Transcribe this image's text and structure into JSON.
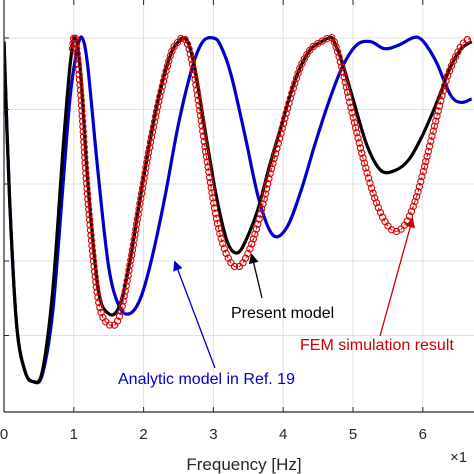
{
  "chart_data": {
    "type": "line",
    "title": "",
    "xlabel": "Frequency [Hz]",
    "ylabel": "",
    "x_exponent_label": "×1",
    "xlim": [
      0,
      6.7
    ],
    "ylim": [
      0,
      1
    ],
    "xticks": [
      0,
      1,
      2,
      3,
      4,
      5,
      6
    ],
    "xtick_labels": [
      "0",
      "1",
      "2",
      "3",
      "4",
      "5",
      "6"
    ],
    "yticks": [
      0,
      0.2,
      0.4,
      0.6,
      0.8,
      1.0
    ],
    "grid": true,
    "series": [
      {
        "name": "Present model",
        "color": "#000000",
        "style": "solid",
        "x": [
          0.0,
          0.08,
          0.18,
          0.3,
          0.42,
          0.55,
          0.7,
          0.85,
          0.95,
          1.02,
          1.1,
          1.2,
          1.35,
          1.5,
          1.65,
          1.8,
          1.95,
          2.1,
          2.25,
          2.4,
          2.5,
          2.57,
          2.65,
          2.75,
          2.9,
          3.05,
          3.2,
          3.35,
          3.5,
          3.65,
          3.8,
          3.95,
          4.1,
          4.25,
          4.4,
          4.55,
          4.65,
          4.7,
          4.75,
          4.85,
          5.0,
          5.2,
          5.4,
          5.6,
          5.8,
          6.0,
          6.2,
          6.4,
          6.55,
          6.7
        ],
        "y": [
          0.99,
          0.55,
          0.2,
          0.07,
          0.04,
          0.07,
          0.3,
          0.7,
          0.93,
          1.0,
          0.9,
          0.6,
          0.3,
          0.23,
          0.25,
          0.37,
          0.55,
          0.72,
          0.86,
          0.96,
          0.99,
          1.0,
          0.98,
          0.9,
          0.72,
          0.55,
          0.43,
          0.4,
          0.45,
          0.53,
          0.64,
          0.74,
          0.84,
          0.92,
          0.97,
          0.99,
          1.0,
          1.0,
          0.98,
          0.93,
          0.83,
          0.7,
          0.63,
          0.63,
          0.66,
          0.73,
          0.82,
          0.92,
          0.97,
          0.99
        ]
      },
      {
        "name": "Analytic model in Ref. 19",
        "color": "#0000c8",
        "style": "solid",
        "x": [
          0.0,
          0.08,
          0.18,
          0.3,
          0.42,
          0.55,
          0.7,
          0.85,
          0.95,
          1.05,
          1.12,
          1.2,
          1.35,
          1.5,
          1.65,
          1.8,
          1.95,
          2.1,
          2.3,
          2.5,
          2.7,
          2.85,
          3.0,
          3.1,
          3.25,
          3.45,
          3.65,
          3.85,
          4.05,
          4.25,
          4.45,
          4.65,
          4.85,
          5.05,
          5.25,
          5.45,
          5.65,
          5.85,
          5.95,
          6.05,
          6.2,
          6.4,
          6.55,
          6.7
        ],
        "y": [
          0.99,
          0.55,
          0.2,
          0.07,
          0.04,
          0.06,
          0.24,
          0.6,
          0.84,
          0.97,
          1.0,
          0.92,
          0.62,
          0.36,
          0.25,
          0.23,
          0.27,
          0.37,
          0.55,
          0.76,
          0.92,
          0.99,
          1.0,
          0.98,
          0.9,
          0.73,
          0.55,
          0.45,
          0.47,
          0.57,
          0.7,
          0.82,
          0.92,
          0.98,
          0.99,
          0.97,
          0.98,
          1.0,
          1.0,
          0.98,
          0.93,
          0.84,
          0.82,
          0.83
        ]
      },
      {
        "name": "FEM simulation result",
        "color": "#dd0000",
        "style": "marker",
        "x": [
          0.98,
          1.02,
          1.1,
          1.2,
          1.35,
          1.5,
          1.65,
          1.8,
          1.95,
          2.1,
          2.25,
          2.4,
          2.5,
          2.57,
          2.65,
          2.75,
          2.9,
          3.05,
          3.2,
          3.35,
          3.5,
          3.65,
          3.8,
          3.95,
          4.1,
          4.25,
          4.4,
          4.55,
          4.65,
          4.7,
          4.75,
          4.85,
          5.0,
          5.15,
          5.3,
          5.45,
          5.6,
          5.75,
          5.9,
          6.05,
          6.2,
          6.35,
          6.5,
          6.6,
          6.7
        ],
        "y": [
          0.97,
          1.0,
          0.84,
          0.55,
          0.27,
          0.2,
          0.22,
          0.36,
          0.54,
          0.71,
          0.85,
          0.96,
          0.99,
          1.0,
          0.97,
          0.87,
          0.67,
          0.49,
          0.39,
          0.36,
          0.4,
          0.49,
          0.61,
          0.72,
          0.83,
          0.92,
          0.97,
          0.99,
          1.0,
          1.0,
          0.98,
          0.91,
          0.78,
          0.66,
          0.56,
          0.49,
          0.46,
          0.48,
          0.55,
          0.66,
          0.78,
          0.89,
          0.96,
          0.99,
          1.0
        ]
      }
    ],
    "annotations": [
      {
        "text": "Present model",
        "color": "#000000",
        "target_series": "Present model",
        "target": [
          3.55,
          0.41
        ]
      },
      {
        "text": "FEM simulation result",
        "color": "#cc0000",
        "target_series": "FEM simulation result",
        "target": [
          5.85,
          0.51
        ]
      },
      {
        "text": "Analytic model in Ref. 19",
        "color": "#0000c8",
        "target_series": "Analytic model in Ref. 19",
        "target": [
          2.45,
          0.39
        ]
      }
    ]
  }
}
